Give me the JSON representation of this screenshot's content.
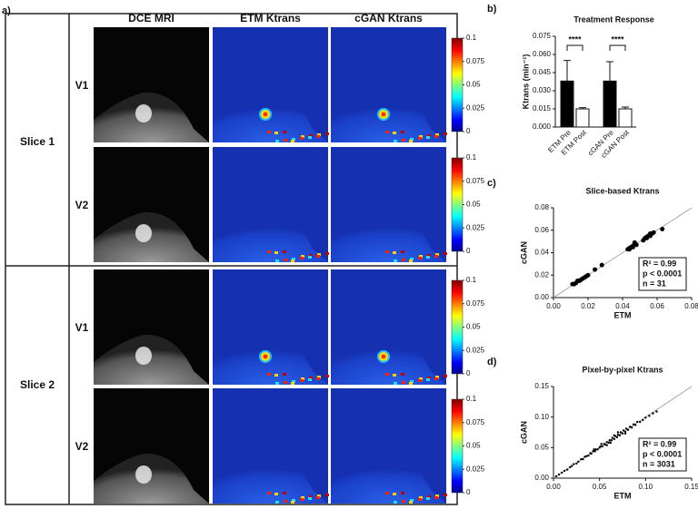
{
  "figure": {
    "panel_label": "a)",
    "columns": [
      "DCE MRI",
      "ETM Ktrans",
      "cGAN Ktrans"
    ],
    "slices": [
      {
        "label": "Slice 1",
        "visits": [
          "V1",
          "V2"
        ]
      },
      {
        "label": "Slice 2",
        "visits": [
          "V1",
          "V2"
        ]
      }
    ],
    "colorbar_ticks": [
      0.1,
      0.075,
      0.05,
      0.025,
      0
    ]
  },
  "chart_data": [
    {
      "type": "bar",
      "panel_label": "b)",
      "title": "Treatment Response",
      "y_label": "Ktrans (min⁻¹)",
      "categories": [
        "ETM Pre",
        "ETM Post",
        "cGAN Pre",
        "cGAN Post"
      ],
      "values": [
        0.038,
        0.015,
        0.038,
        0.015
      ],
      "errors": [
        0.017,
        0.001,
        0.016,
        0.0015
      ],
      "colors": [
        "#000000",
        "#ffffff",
        "#000000",
        "#ffffff"
      ],
      "annotations": [
        "****",
        "****"
      ],
      "ylim": [
        0,
        0.075
      ],
      "yticks": [
        {
          "value": 0,
          "label": "0.000"
        },
        {
          "value": 0.015,
          "label": "0.015"
        },
        {
          "value": 0.03,
          "label": "0.030"
        },
        {
          "value": 0.045,
          "label": "0.045"
        },
        {
          "value": 0.06,
          "label": "0.060"
        },
        {
          "value": 0.075,
          "label": "0.075"
        }
      ]
    },
    {
      "type": "scatter",
      "panel_label": "c)",
      "title": "Slice-based Ktrans",
      "x_label": "ETM",
      "y_label": "cGAN",
      "stats": [
        "R² = 0.99",
        "p < 0.0001",
        "n = 31"
      ],
      "x": [
        0.011,
        0.012,
        0.013,
        0.014,
        0.015,
        0.016,
        0.017,
        0.018,
        0.019,
        0.02,
        0.024,
        0.028,
        0.043,
        0.044,
        0.045,
        0.046,
        0.046,
        0.047,
        0.048,
        0.052,
        0.053,
        0.054,
        0.054,
        0.055,
        0.056,
        0.056,
        0.057,
        0.058,
        0.047,
        0.044,
        0.063
      ],
      "y": [
        0.012,
        0.012,
        0.013,
        0.015,
        0.015,
        0.016,
        0.017,
        0.018,
        0.019,
        0.02,
        0.025,
        0.029,
        0.043,
        0.044,
        0.045,
        0.046,
        0.045,
        0.048,
        0.047,
        0.051,
        0.053,
        0.053,
        0.054,
        0.055,
        0.055,
        0.057,
        0.057,
        0.058,
        0.049,
        0.043,
        0.061
      ],
      "xlim": [
        0,
        0.08
      ],
      "ylim": [
        0,
        0.08
      ],
      "xticks": [
        {
          "value": 0,
          "label": "0.00"
        },
        {
          "value": 0.02,
          "label": "0.02"
        },
        {
          "value": 0.04,
          "label": "0.04"
        },
        {
          "value": 0.06,
          "label": "0.06"
        },
        {
          "value": 0.08,
          "label": "0.08"
        }
      ],
      "yticks": [
        {
          "value": 0,
          "label": "0.00"
        },
        {
          "value": 0.02,
          "label": "0.02"
        },
        {
          "value": 0.04,
          "label": "0.04"
        },
        {
          "value": 0.06,
          "label": "0.06"
        },
        {
          "value": 0.08,
          "label": "0.08"
        }
      ]
    },
    {
      "type": "scatter",
      "panel_label": "d)",
      "title": "Pixel-by-pixel Ktrans",
      "x_label": "ETM",
      "y_label": "cGAN",
      "stats": [
        "R² = 0.99",
        "p < 0.0001",
        "n = 3031"
      ],
      "x": [
        0.003,
        0.006,
        0.009,
        0.012,
        0.015,
        0.018,
        0.02,
        0.022,
        0.025,
        0.027,
        0.03,
        0.032,
        0.034,
        0.036,
        0.038,
        0.04,
        0.041,
        0.043,
        0.045,
        0.046,
        0.048,
        0.05,
        0.051,
        0.053,
        0.055,
        0.056,
        0.058,
        0.06,
        0.061,
        0.063,
        0.064,
        0.066,
        0.067,
        0.069,
        0.07,
        0.072,
        0.073,
        0.075,
        0.076,
        0.078,
        0.079,
        0.081,
        0.083,
        0.085,
        0.087,
        0.089,
        0.091,
        0.094,
        0.097,
        0.1,
        0.104,
        0.108,
        0.112,
        0.052,
        0.062,
        0.07,
        0.078,
        0.044,
        0.058,
        0.066
      ],
      "y": [
        0.003,
        0.006,
        0.009,
        0.012,
        0.014,
        0.018,
        0.02,
        0.023,
        0.024,
        0.027,
        0.031,
        0.031,
        0.035,
        0.036,
        0.037,
        0.041,
        0.04,
        0.044,
        0.044,
        0.047,
        0.047,
        0.05,
        0.052,
        0.052,
        0.056,
        0.055,
        0.059,
        0.058,
        0.062,
        0.062,
        0.066,
        0.064,
        0.069,
        0.067,
        0.071,
        0.07,
        0.075,
        0.073,
        0.078,
        0.076,
        0.081,
        0.079,
        0.084,
        0.083,
        0.088,
        0.087,
        0.092,
        0.092,
        0.095,
        0.099,
        0.102,
        0.106,
        0.109,
        0.056,
        0.058,
        0.075,
        0.073,
        0.047,
        0.054,
        0.07
      ],
      "xlim": [
        0,
        0.15
      ],
      "ylim": [
        0,
        0.15
      ],
      "xticks": [
        {
          "value": 0,
          "label": "0.00"
        },
        {
          "value": 0.05,
          "label": "0.05"
        },
        {
          "value": 0.1,
          "label": "0.10"
        },
        {
          "value": 0.15,
          "label": "0.15"
        }
      ],
      "yticks": [
        {
          "value": 0,
          "label": "0.00"
        },
        {
          "value": 0.05,
          "label": "0.05"
        },
        {
          "value": 0.1,
          "label": "0.10"
        },
        {
          "value": 0.15,
          "label": "0.15"
        }
      ]
    }
  ]
}
